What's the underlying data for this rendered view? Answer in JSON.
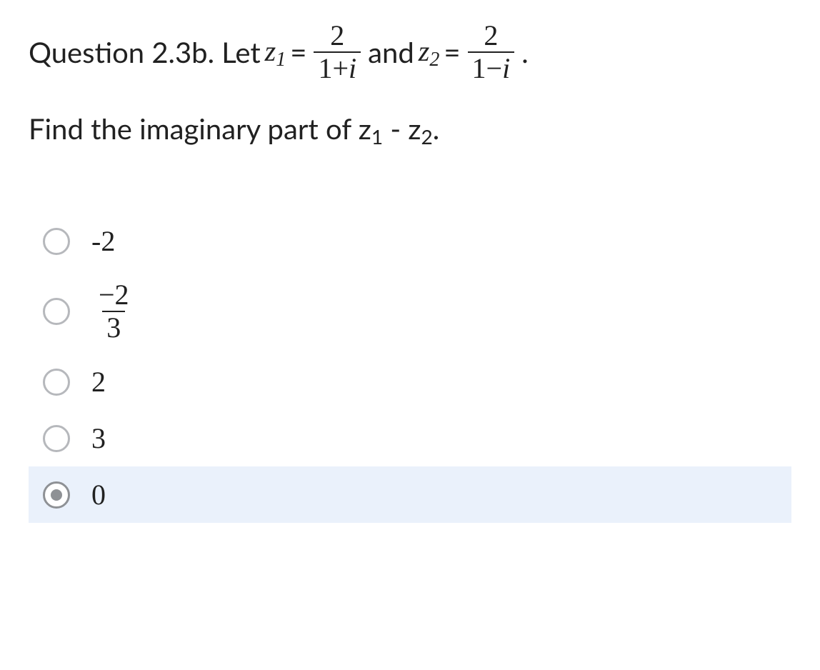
{
  "question": {
    "prefix": "Question 2.3b. Let ",
    "z1_sym": "z",
    "z1_sub": "1",
    "eq": " = ",
    "frac1_num": "2",
    "frac1_den_a": "1+",
    "frac1_den_i": "i",
    "between": " and ",
    "z2_sym": "z",
    "z2_sub": "2",
    "frac2_num": "2",
    "frac2_den_a": "1−",
    "frac2_den_i": "i",
    "suffix": "."
  },
  "prompt": {
    "a": "Find the imaginary part of z",
    "s1": "1",
    "b": " - z",
    "s2": "2",
    "c": "."
  },
  "options": [
    {
      "type": "plain",
      "text": "-2",
      "selected": false
    },
    {
      "type": "frac",
      "num": "−2",
      "den": "3",
      "selected": false
    },
    {
      "type": "plain",
      "text": "2",
      "selected": false
    },
    {
      "type": "plain",
      "text": "3",
      "selected": false
    },
    {
      "type": "plain",
      "text": "0",
      "selected": true
    }
  ],
  "colors": {
    "text": "#212121",
    "radio_border": "#b6b8bc",
    "radio_dot": "#8e9195",
    "selected_bg": "#eaf1fb",
    "background": "#ffffff"
  }
}
